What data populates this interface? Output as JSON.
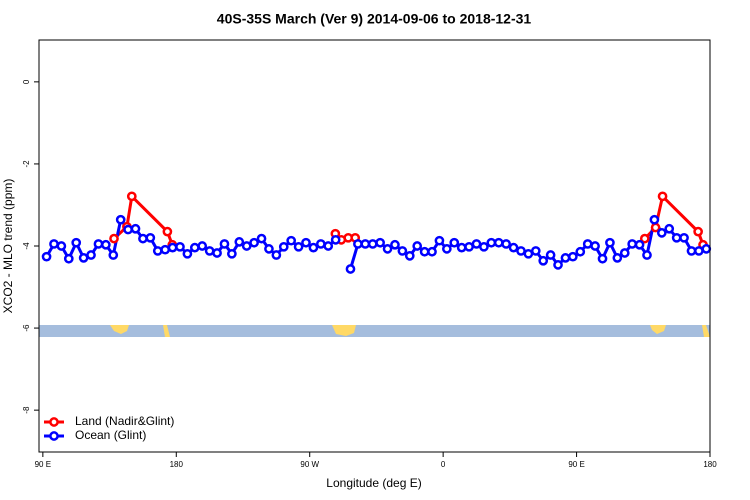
{
  "chart_data": {
    "type": "line",
    "title": "40S-35S March (Ver 9)   2014-09-06 to 2018-12-31",
    "x_label": "Longitude (deg E)",
    "y_label": "XCO2 - MLO trend (ppm)",
    "xlim": [
      87.4,
      540
    ],
    "ylim": [
      -9.02,
      1.02
    ],
    "xticks": [
      {
        "value": 90,
        "label": "90 E"
      },
      180,
      {
        "value": 270,
        "label": "90 W"
      },
      {
        "value": 360,
        "label": "0"
      },
      {
        "value": 450,
        "label": "90 E"
      },
      {
        "value": 540,
        "label": "180"
      }
    ],
    "yticks": [
      0,
      -2,
      -4,
      -6,
      -8
    ],
    "legend": "bottom-left",
    "series": [
      {
        "name": "Land (Nadir&Glint)",
        "color": "#ff0000",
        "x": [
          138,
          146.7,
          150,
          174,
          177.3,
          287.3,
          291.3,
          296,
          300.7,
          496,
          503.3,
          508,
          532,
          535.3
        ],
        "values": [
          -3.82,
          -3.53,
          -2.79,
          -3.65,
          -3.97,
          -3.7,
          -3.85,
          -3.8,
          -3.8,
          -3.82,
          -3.55,
          -2.79,
          -3.65,
          -3.97
        ],
        "breaks_after": [
          4,
          8
        ]
      },
      {
        "name": "Ocean (Glint)",
        "color": "#0000ff",
        "x": [
          92.5,
          97.5,
          102.5,
          107.5,
          112.5,
          117.5,
          122.5,
          127.5,
          132.5,
          137.5,
          142.5,
          147.5,
          152.5,
          157.5,
          162.5,
          167.5,
          172.5,
          177.5,
          182.5,
          187.5,
          192.5,
          197.5,
          202.5,
          207.5,
          212.5,
          217.5,
          222.5,
          227.5,
          232.5,
          237.5,
          242.5,
          247.5,
          252.5,
          257.5,
          262.5,
          267.5,
          272.5,
          277.5,
          282.5,
          287.5,
          292.5,
          297.5,
          302.5,
          307.5,
          312.5,
          317.5,
          322.5,
          327.5,
          332.5,
          337.5,
          342.5,
          347.5,
          352.5,
          357.5,
          362.5,
          367.5,
          372.5,
          377.5,
          382.5,
          387.5,
          392.5,
          397.5,
          402.5,
          407.5,
          412.5,
          417.5,
          422.5,
          427.5,
          432.5,
          437.5,
          442.5,
          447.5,
          452.5,
          457.5,
          462.5,
          467.5,
          472.5,
          477.5,
          482.5,
          487.5,
          492.5,
          497.5,
          502.5,
          507.5,
          512.5,
          517.5,
          522.5,
          527.5,
          532.5,
          537.5
        ],
        "values": [
          -4.26,
          -3.95,
          -4.0,
          -4.31,
          -3.92,
          -4.29,
          -4.22,
          -3.95,
          -3.97,
          -4.22,
          -3.36,
          -3.6,
          -3.58,
          -3.82,
          -3.8,
          -4.12,
          -4.09,
          -4.04,
          -4.02,
          -4.19,
          -4.04,
          -4.0,
          -4.12,
          -4.17,
          -3.95,
          -4.19,
          -3.9,
          -4.0,
          -3.92,
          -3.82,
          -4.07,
          -4.22,
          -4.02,
          -3.87,
          -4.02,
          -3.92,
          -4.04,
          -3.95,
          -4.0,
          -3.85,
          null,
          -4.56,
          -3.95,
          -3.95,
          -3.95,
          -3.92,
          -4.07,
          -3.97,
          -4.12,
          -4.24,
          -4.0,
          -4.14,
          -4.14,
          -3.87,
          -4.07,
          -3.92,
          -4.04,
          -4.02,
          -3.95,
          -4.02,
          -3.92,
          -3.92,
          -3.95,
          -4.04,
          -4.12,
          -4.19,
          -4.12,
          -4.36,
          -4.22,
          -4.46,
          -4.29,
          -4.26,
          -4.14,
          -3.95,
          -4.0,
          -4.31,
          -3.92,
          -4.29,
          -4.17,
          -3.95,
          -3.97,
          -4.22,
          -3.36,
          -3.68,
          -3.58,
          -3.8,
          -3.8,
          -4.12,
          -4.12,
          -4.07
        ]
      }
    ]
  }
}
